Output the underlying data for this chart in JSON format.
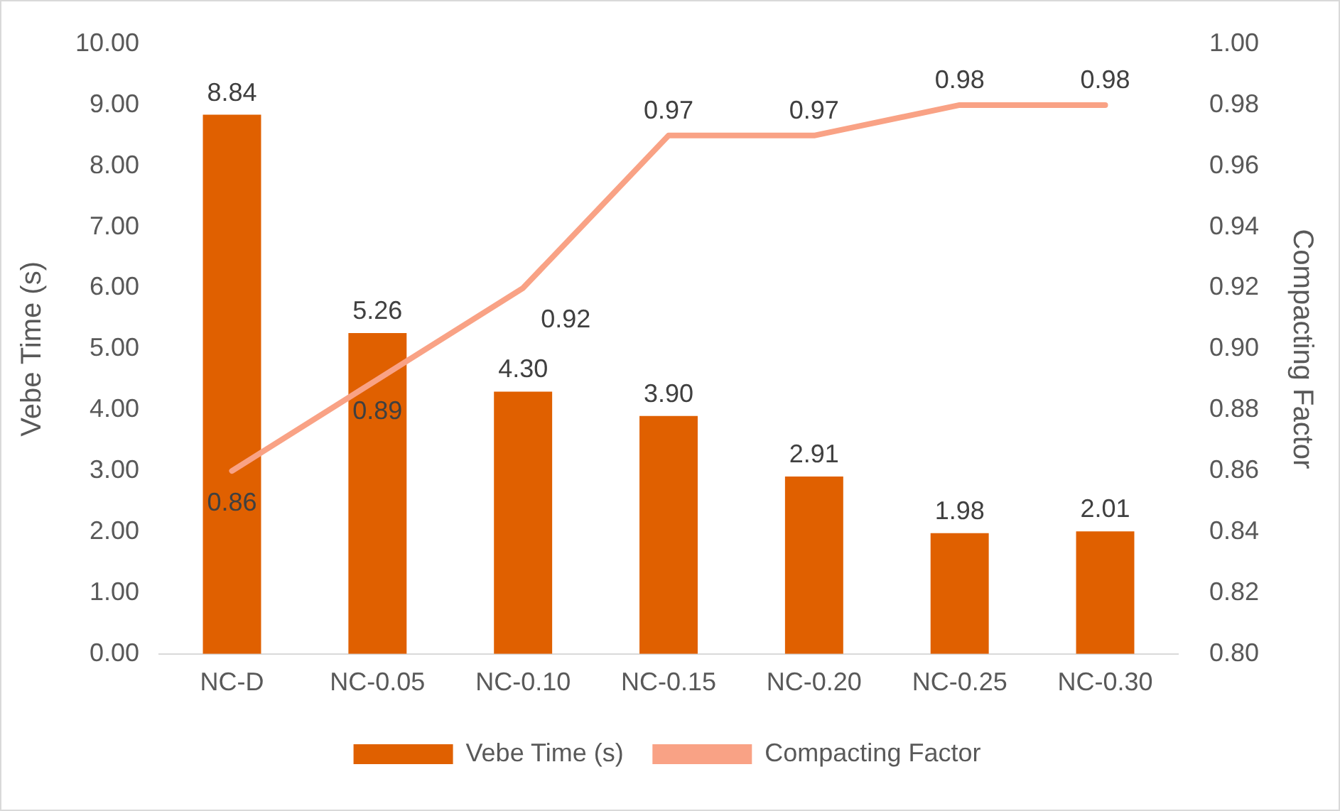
{
  "chart_data": {
    "type": "bar",
    "categories": [
      "NC-D",
      "NC-0.05",
      "NC-0.10",
      "NC-0.15",
      "NC-0.20",
      "NC-0.25",
      "NC-0.30"
    ],
    "ylabel": "Vebe Time (s)",
    "y2label": "Compacting Factor",
    "series": [
      {
        "name": "Vebe Time (s)",
        "color": "#e06000",
        "values": [
          8.84,
          5.26,
          4.3,
          3.9,
          2.91,
          1.98,
          2.01
        ],
        "value_labels": [
          "8.84",
          "5.26",
          "4.30",
          "3.90",
          "2.91",
          "1.98",
          "2.01"
        ]
      },
      {
        "name": "Compacting Factor",
        "type": "line",
        "axis": "y2",
        "color": "#f9a285",
        "values": [
          0.86,
          0.89,
          0.92,
          0.97,
          0.97,
          0.98,
          0.98
        ],
        "value_labels": [
          "0.86",
          "0.89",
          "0.92",
          "0.97",
          "0.97",
          "0.98",
          "0.98"
        ]
      }
    ],
    "ylim": [
      0,
      10
    ],
    "yticks": [
      {
        "value": 0,
        "label": "0.00"
      },
      {
        "value": 1,
        "label": "1.00"
      },
      {
        "value": 2,
        "label": "2.00"
      },
      {
        "value": 3,
        "label": "3.00"
      },
      {
        "value": 4,
        "label": "4.00"
      },
      {
        "value": 5,
        "label": "5.00"
      },
      {
        "value": 6,
        "label": "6.00"
      },
      {
        "value": 7,
        "label": "7.00"
      },
      {
        "value": 8,
        "label": "8.00"
      },
      {
        "value": 9,
        "label": "9.00"
      },
      {
        "value": 10,
        "label": "10.00"
      }
    ],
    "y2lim": [
      0.8,
      1.0
    ],
    "y2ticks": [
      {
        "value": 0.8,
        "label": "0.80"
      },
      {
        "value": 0.82,
        "label": "0.82"
      },
      {
        "value": 0.84,
        "label": "0.84"
      },
      {
        "value": 0.86,
        "label": "0.86"
      },
      {
        "value": 0.88,
        "label": "0.88"
      },
      {
        "value": 0.9,
        "label": "0.90"
      },
      {
        "value": 0.92,
        "label": "0.92"
      },
      {
        "value": 0.94,
        "label": "0.94"
      },
      {
        "value": 0.96,
        "label": "0.96"
      },
      {
        "value": 0.98,
        "label": "0.98"
      },
      {
        "value": 1.0,
        "label": "1.00"
      }
    ],
    "grid": false,
    "legend": "bottom",
    "marker": "none",
    "line_style": "solid"
  }
}
